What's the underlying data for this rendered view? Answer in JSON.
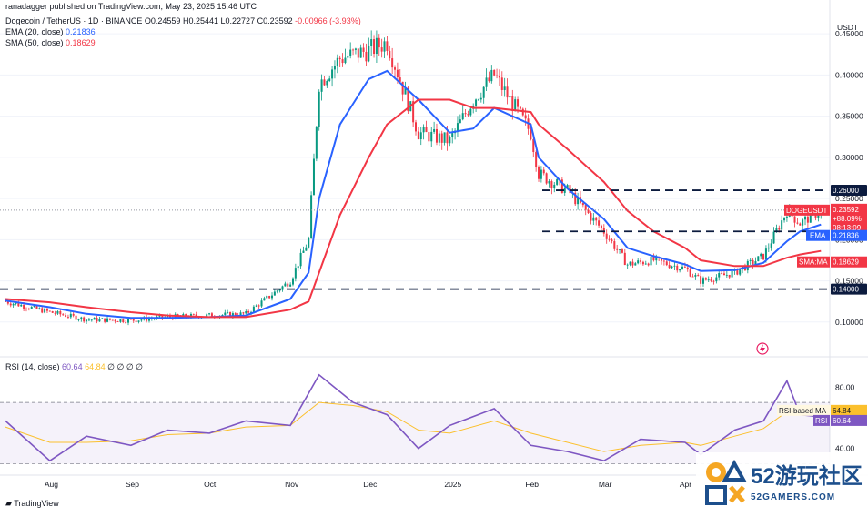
{
  "header": {
    "published": "ranadagger published on TradingView.com, May 23, 2025 15:46 UTC",
    "symbol": "Dogecoin / TetherUS · 1D · BINANCE",
    "ohlc": {
      "o": "O0.24559",
      "h": "H0.25441",
      "l": "L0.22727",
      "c": "C0.23592",
      "chg": "-0.00966 (-3.93%)"
    },
    "ema_label": "EMA (20, close)",
    "ema_value": "0.21836",
    "sma_label": "SMA (50, close)",
    "sma_value": "0.18629",
    "rsi_label": "RSI (14, close)",
    "rsi_value": "60.64",
    "rsi_ma_value": "64.84",
    "rsi_extra": "∅ ∅ ∅ ∅"
  },
  "price_axis": {
    "unit": "USDT",
    "ticks": [
      "0.45000",
      "0.40000",
      "0.35000",
      "0.30000",
      "0.25000",
      "0.20000",
      "0.15000",
      "0.10000"
    ]
  },
  "rsi_axis": {
    "ticks": [
      "80.00",
      "40.00"
    ]
  },
  "time_axis": {
    "ticks": [
      "Aug",
      "Sep",
      "Oct",
      "Nov",
      "Dec",
      "2025",
      "Feb",
      "Mar",
      "Apr"
    ]
  },
  "labels": {
    "level_260": "0.26000",
    "level_210": "0.21000",
    "level_140": "0.14000",
    "ticker": "DOGEUSDT",
    "last": "0.23592",
    "pct": "+88.09%",
    "countdown": "08:13:09",
    "ema_tag": "EMA",
    "ema_val": "0.21836",
    "sma_tag": "SMA:MA",
    "sma_val": "0.18629",
    "rsi_ma_tag": "RSI-based MA",
    "rsi_ma_val": "64.84",
    "rsi_tag": "RSI",
    "rsi_val": "60.64"
  },
  "footer": {
    "brand": "TradingView"
  },
  "watermark": {
    "text": "52游玩社区",
    "sub": "52GAMERS.COM"
  },
  "colors": {
    "up": "#089981",
    "down": "#f23645",
    "ema": "#2962ff",
    "sma": "#f23645",
    "rsi": "#7e57c2",
    "rsi_ma": "#fbc02d",
    "level": "#0c1b3e"
  },
  "chart_data": [
    {
      "type": "line",
      "title": "Dogecoin / TetherUS · 1D · BINANCE",
      "x": [
        "2024-07-15",
        "2024-08-01",
        "2024-08-15",
        "2024-09-01",
        "2024-09-15",
        "2024-10-01",
        "2024-10-15",
        "2024-11-01",
        "2024-11-08",
        "2024-11-12",
        "2024-11-20",
        "2024-12-01",
        "2024-12-08",
        "2024-12-20",
        "2025-01-01",
        "2025-01-10",
        "2025-01-18",
        "2025-02-01",
        "2025-02-04",
        "2025-02-15",
        "2025-03-01",
        "2025-03-10",
        "2025-03-20",
        "2025-04-01",
        "2025-04-07",
        "2025-04-20",
        "2025-05-01",
        "2025-05-10",
        "2025-05-15",
        "2025-05-23"
      ],
      "series": [
        {
          "name": "DOGEUSDT",
          "values": [
            0.125,
            0.112,
            0.103,
            0.102,
            0.106,
            0.108,
            0.11,
            0.15,
            0.2,
            0.39,
            0.42,
            0.43,
            0.44,
            0.33,
            0.32,
            0.37,
            0.4,
            0.33,
            0.28,
            0.26,
            0.21,
            0.17,
            0.175,
            0.165,
            0.15,
            0.16,
            0.18,
            0.235,
            0.22,
            0.23592
          ]
        },
        {
          "name": "EMA (20, close)",
          "values": [
            0.126,
            0.118,
            0.11,
            0.105,
            0.105,
            0.106,
            0.108,
            0.128,
            0.16,
            0.25,
            0.34,
            0.395,
            0.405,
            0.37,
            0.33,
            0.335,
            0.36,
            0.34,
            0.3,
            0.262,
            0.225,
            0.19,
            0.18,
            0.17,
            0.162,
            0.163,
            0.172,
            0.198,
            0.21,
            0.21836
          ]
        },
        {
          "name": "SMA (50, close)",
          "values": [
            0.128,
            0.124,
            0.118,
            0.112,
            0.108,
            0.106,
            0.106,
            0.115,
            0.125,
            0.16,
            0.23,
            0.3,
            0.34,
            0.37,
            0.37,
            0.36,
            0.36,
            0.355,
            0.34,
            0.31,
            0.27,
            0.235,
            0.21,
            0.19,
            0.175,
            0.168,
            0.168,
            0.178,
            0.182,
            0.18629
          ]
        }
      ],
      "ylim": [
        0.06,
        0.48
      ],
      "ylabel": "USDT",
      "hlines": [
        0.26,
        0.21,
        0.14
      ],
      "grid": true
    },
    {
      "type": "line",
      "title": "RSI (14, close)",
      "x": [
        "2024-07-15",
        "2024-08-01",
        "2024-08-15",
        "2024-09-01",
        "2024-09-15",
        "2024-10-01",
        "2024-10-15",
        "2024-11-01",
        "2024-11-12",
        "2024-11-25",
        "2024-12-08",
        "2024-12-20",
        "2025-01-01",
        "2025-01-18",
        "2025-02-01",
        "2025-02-15",
        "2025-03-01",
        "2025-03-15",
        "2025-04-01",
        "2025-04-07",
        "2025-04-20",
        "2025-05-01",
        "2025-05-10",
        "2025-05-15",
        "2025-05-23"
      ],
      "series": [
        {
          "name": "RSI",
          "values": [
            58,
            32,
            48,
            42,
            52,
            50,
            58,
            55,
            88,
            70,
            62,
            40,
            55,
            66,
            42,
            38,
            32,
            46,
            44,
            36,
            52,
            58,
            84,
            62,
            60.64
          ]
        },
        {
          "name": "RSI-based MA",
          "values": [
            54,
            44,
            44,
            45,
            49,
            50,
            54,
            55,
            70,
            68,
            64,
            52,
            50,
            58,
            50,
            44,
            38,
            42,
            44,
            42,
            48,
            53,
            64,
            66,
            64.84
          ]
        }
      ],
      "ylim": [
        25,
        95
      ],
      "bands": [
        70,
        30
      ]
    }
  ]
}
